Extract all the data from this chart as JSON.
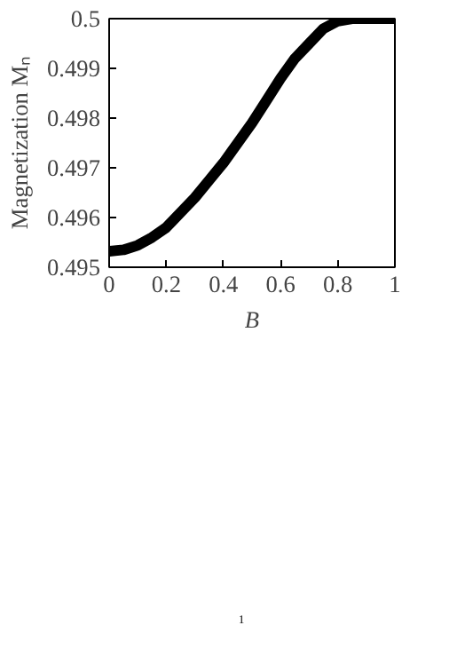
{
  "chart_data": {
    "type": "line",
    "xlabel": "B",
    "ylabel": "Magnetization Mₙ",
    "x": [
      0,
      0.05,
      0.1,
      0.15,
      0.2,
      0.25,
      0.3,
      0.35,
      0.4,
      0.45,
      0.5,
      0.55,
      0.6,
      0.65,
      0.7,
      0.75,
      0.8,
      0.85,
      0.9,
      0.95,
      1
    ],
    "series": [
      {
        "color": "#000000",
        "values": [
          0.49532,
          0.49535,
          0.49544,
          0.4956,
          0.4958,
          0.4961,
          0.4964,
          0.49675,
          0.4971,
          0.4975,
          0.4979,
          0.49835,
          0.4988,
          0.4992,
          0.4995,
          0.4998,
          0.49995,
          0.5,
          0.5,
          0.5,
          0.5
        ]
      }
    ],
    "xlim": [
      0,
      1
    ],
    "ylim": [
      0.495,
      0.5
    ],
    "xticks": [
      0,
      0.2,
      0.4,
      0.6,
      0.8,
      1
    ],
    "yticks": [
      0.495,
      0.496,
      0.497,
      0.498,
      0.499,
      0.5
    ],
    "grid": false,
    "line_style": "solid",
    "marker": "none",
    "annotations": [
      "1"
    ]
  }
}
